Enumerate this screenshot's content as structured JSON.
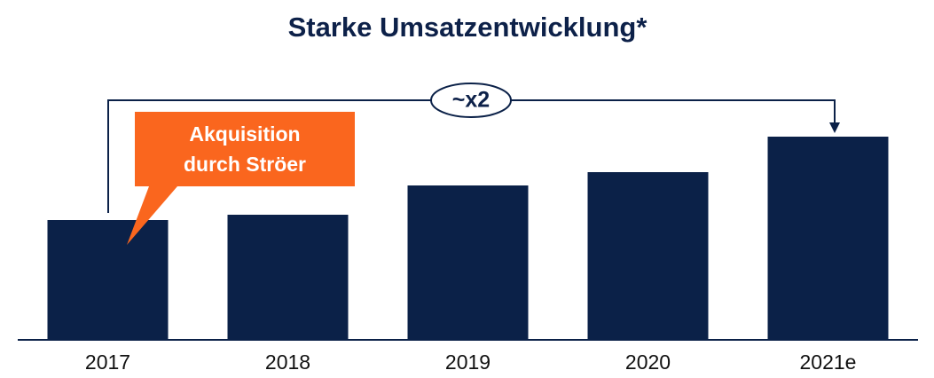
{
  "chart_data": {
    "type": "bar",
    "title": "Starke Umsatzentwicklung*",
    "categories": [
      "2017",
      "2018",
      "2019",
      "2020",
      "2021e"
    ],
    "values": [
      135,
      141,
      174,
      189,
      229
    ],
    "color": "#0b2148",
    "ylim": [
      0,
      250
    ],
    "annotations": {
      "growth": "~x2",
      "callout": [
        "Akquisition",
        "durch Ströer"
      ]
    }
  }
}
